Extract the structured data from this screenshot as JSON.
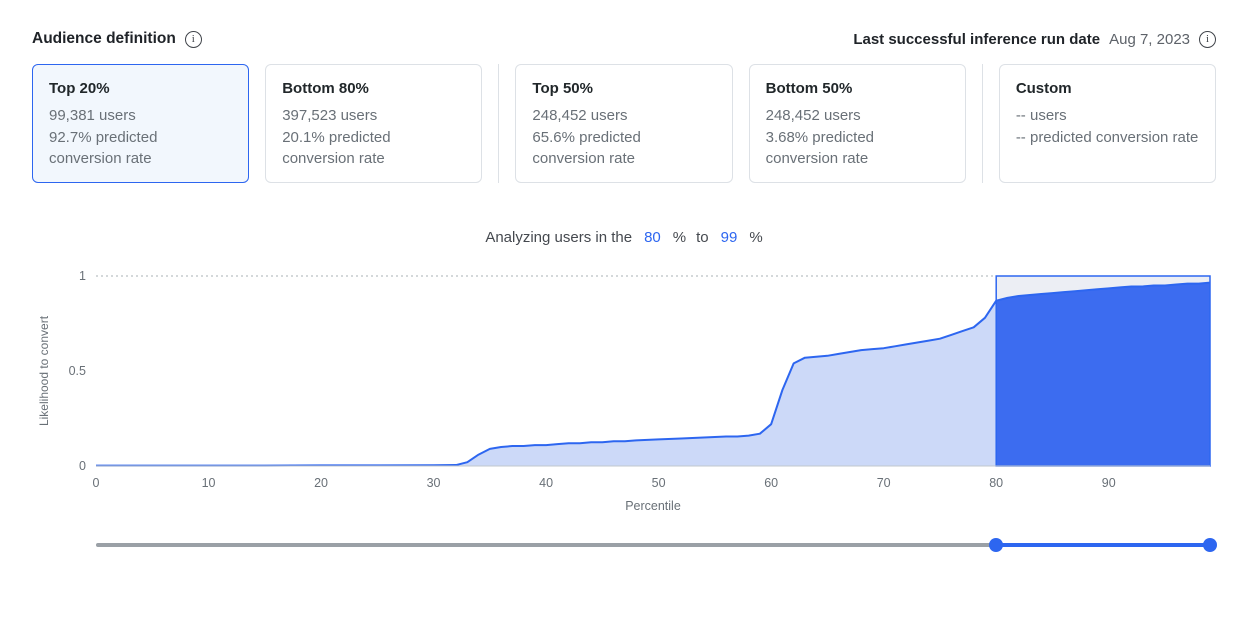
{
  "icons": {
    "info": "i"
  },
  "header": {
    "title": "Audience definition",
    "last_run_label": "Last successful inference run date",
    "last_run_date": "Aug 7, 2023"
  },
  "cards": [
    {
      "title": "Top 20%",
      "users": "99,381 users",
      "rate": "92.7% predicted conversion rate",
      "selected": true
    },
    {
      "title": "Bottom 80%",
      "users": "397,523 users",
      "rate": "20.1% predicted conversion rate",
      "selected": false
    },
    {
      "title": "Top 50%",
      "users": "248,452 users",
      "rate": "65.6% predicted conversion rate",
      "selected": false
    },
    {
      "title": "Bottom 50%",
      "users": "248,452 users",
      "rate": "3.68% predicted conversion rate",
      "selected": false
    },
    {
      "title": "Custom",
      "users": "-- users",
      "rate": "-- predicted conversion rate",
      "selected": false
    }
  ],
  "analyzer": {
    "prefix": "Analyzing users in the",
    "from_value": "80",
    "percent_1": "%",
    "to_word": "to",
    "to_value": "99",
    "percent_2": "%"
  },
  "chart_data": {
    "type": "area",
    "title": "",
    "xlabel": "Percentile",
    "ylabel": "Likelihood to convert",
    "xlim": [
      0,
      99
    ],
    "ylim": [
      0,
      1
    ],
    "xticks": [
      0,
      10,
      20,
      30,
      40,
      50,
      60,
      70,
      80,
      90
    ],
    "yticks": [
      0,
      0.5,
      1
    ],
    "grid": "dotted line at y=1 only",
    "selection": {
      "from": 80,
      "to": 99
    },
    "colors": {
      "line": "#2d66f0",
      "area_light": "#ccd9f8",
      "area_selected": "#3c6cf0",
      "selection_bg": "#eceef4",
      "axis": "#c1c7cd",
      "tick_text": "#697077"
    },
    "points": [
      [
        0,
        0.002
      ],
      [
        5,
        0.002
      ],
      [
        10,
        0.002
      ],
      [
        15,
        0.002
      ],
      [
        20,
        0.003
      ],
      [
        25,
        0.003
      ],
      [
        30,
        0.004
      ],
      [
        32,
        0.005
      ],
      [
        33,
        0.02
      ],
      [
        34,
        0.06
      ],
      [
        35,
        0.09
      ],
      [
        36,
        0.1
      ],
      [
        37,
        0.105
      ],
      [
        38,
        0.105
      ],
      [
        39,
        0.11
      ],
      [
        40,
        0.11
      ],
      [
        41,
        0.115
      ],
      [
        42,
        0.12
      ],
      [
        43,
        0.12
      ],
      [
        44,
        0.125
      ],
      [
        45,
        0.125
      ],
      [
        46,
        0.13
      ],
      [
        47,
        0.13
      ],
      [
        48,
        0.135
      ],
      [
        50,
        0.14
      ],
      [
        52,
        0.145
      ],
      [
        54,
        0.15
      ],
      [
        56,
        0.155
      ],
      [
        57,
        0.155
      ],
      [
        58,
        0.16
      ],
      [
        59,
        0.17
      ],
      [
        60,
        0.22
      ],
      [
        61,
        0.4
      ],
      [
        62,
        0.54
      ],
      [
        63,
        0.57
      ],
      [
        64,
        0.575
      ],
      [
        65,
        0.58
      ],
      [
        66,
        0.59
      ],
      [
        67,
        0.6
      ],
      [
        68,
        0.61
      ],
      [
        69,
        0.615
      ],
      [
        70,
        0.62
      ],
      [
        71,
        0.63
      ],
      [
        72,
        0.64
      ],
      [
        73,
        0.65
      ],
      [
        74,
        0.66
      ],
      [
        75,
        0.67
      ],
      [
        76,
        0.69
      ],
      [
        77,
        0.71
      ],
      [
        78,
        0.73
      ],
      [
        79,
        0.78
      ],
      [
        80,
        0.87
      ],
      [
        81,
        0.885
      ],
      [
        82,
        0.895
      ],
      [
        83,
        0.9
      ],
      [
        84,
        0.905
      ],
      [
        85,
        0.91
      ],
      [
        86,
        0.915
      ],
      [
        87,
        0.92
      ],
      [
        88,
        0.925
      ],
      [
        89,
        0.93
      ],
      [
        90,
        0.935
      ],
      [
        91,
        0.94
      ],
      [
        92,
        0.945
      ],
      [
        93,
        0.945
      ],
      [
        94,
        0.95
      ],
      [
        95,
        0.95
      ],
      [
        96,
        0.955
      ],
      [
        97,
        0.96
      ],
      [
        98,
        0.96
      ],
      [
        99,
        0.965
      ]
    ]
  },
  "slider": {
    "min": 0,
    "max": 99,
    "from": 80,
    "to": 99
  }
}
